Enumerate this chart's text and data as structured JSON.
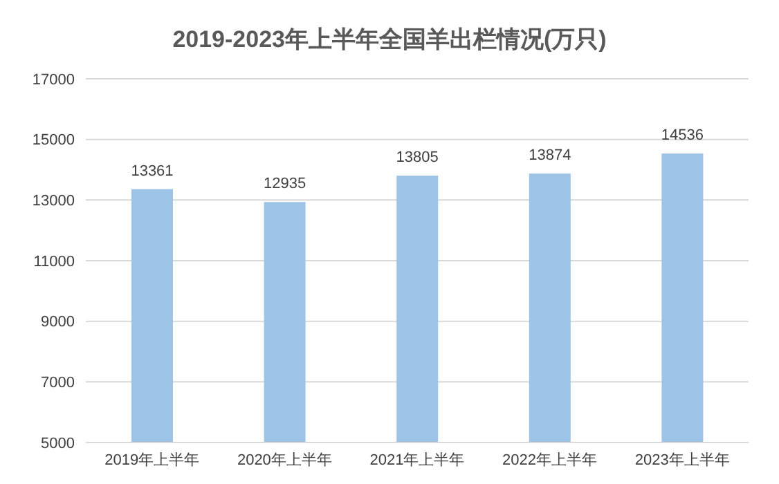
{
  "chart_data": {
    "type": "bar",
    "title": "2019-2023年上半年全国羊出栏情况(万只)",
    "categories": [
      "2019年上半年",
      "2020年上半年",
      "2021年上半年",
      "2022年上半年",
      "2023年上半年"
    ],
    "values": [
      13361,
      12935,
      13805,
      13874,
      14536
    ],
    "color": "#9dc3e6",
    "ylim": [
      5000,
      17000
    ],
    "yticks": [
      5000,
      7000,
      9000,
      11000,
      13000,
      15000,
      17000
    ],
    "grid": "y",
    "data_labels": true
  }
}
